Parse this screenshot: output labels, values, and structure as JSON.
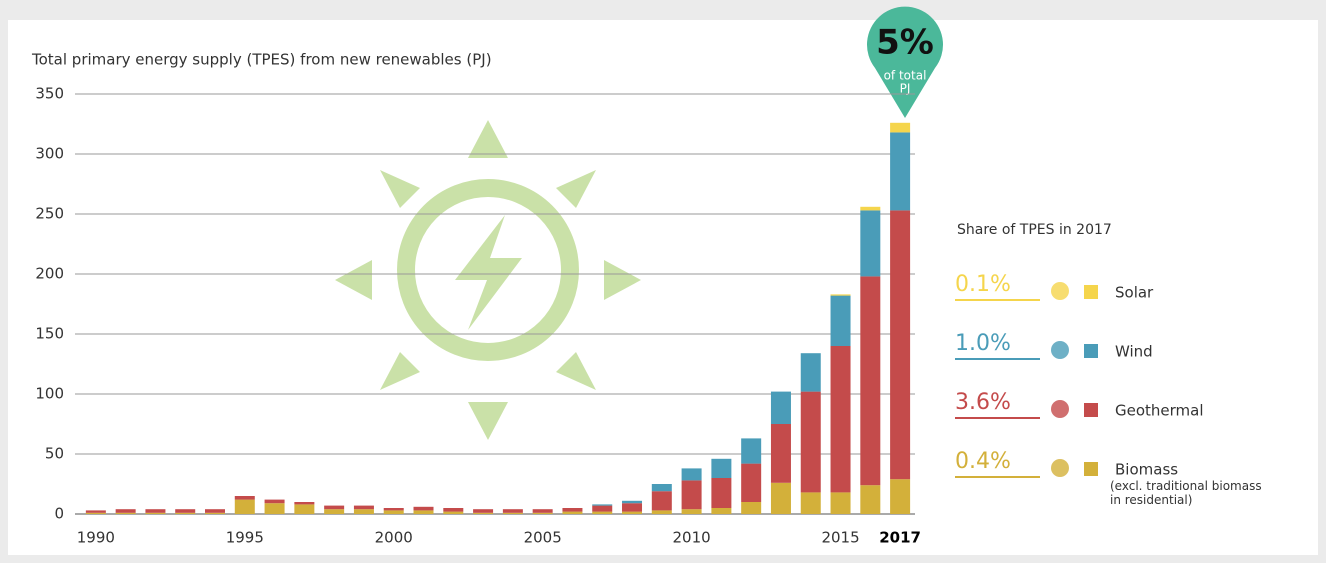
{
  "chart_data": {
    "type": "bar",
    "stacked": true,
    "title": "Total primary energy supply (TPES) from new renewables (PJ)",
    "x": [
      1990,
      1991,
      1992,
      1993,
      1994,
      1995,
      1996,
      1997,
      1998,
      1999,
      2000,
      2001,
      2002,
      2003,
      2004,
      2005,
      2006,
      2007,
      2008,
      2009,
      2010,
      2011,
      2012,
      2013,
      2014,
      2015,
      2016,
      2017
    ],
    "xlim": [
      1989.3,
      2017.5
    ],
    "xticks": [
      1990,
      1995,
      2000,
      2005,
      2010,
      2015,
      2017
    ],
    "ylim": [
      0,
      350
    ],
    "yticks": [
      0,
      50,
      100,
      150,
      200,
      250,
      300,
      350
    ],
    "grid": true,
    "series": [
      {
        "name": "Biomass",
        "note": "(excl. traditional biomass in residential)",
        "share": "0.4%",
        "color": "#d3b03a",
        "values": [
          1,
          1,
          1,
          1,
          1,
          12,
          9,
          8,
          4,
          4,
          3,
          3,
          2,
          1,
          1,
          1,
          2,
          2,
          2,
          3,
          4,
          5,
          10,
          26,
          18,
          18,
          24,
          29
        ]
      },
      {
        "name": "Geothermal",
        "share": "3.6%",
        "color": "#c44b4b",
        "values": [
          2,
          3,
          3,
          3,
          3,
          3,
          3,
          2,
          3,
          3,
          2,
          3,
          3,
          3,
          3,
          3,
          3,
          5,
          7,
          16,
          24,
          25,
          32,
          49,
          84,
          122,
          174,
          224
        ]
      },
      {
        "name": "Wind",
        "share": "1.0%",
        "color": "#4a9cb8",
        "values": [
          0,
          0,
          0,
          0,
          0,
          0,
          0,
          0,
          0,
          0,
          0,
          0,
          0,
          0,
          0,
          0,
          0,
          1,
          2,
          6,
          10,
          16,
          21,
          27,
          32,
          42,
          55,
          65
        ]
      },
      {
        "name": "Solar",
        "share": "0.1%",
        "color": "#f5d54c",
        "values": [
          0,
          0,
          0,
          0,
          0,
          0,
          0,
          0,
          0,
          0,
          0,
          0,
          0,
          0,
          0,
          0,
          0,
          0,
          0,
          0,
          0,
          0,
          0,
          0,
          0,
          1,
          3,
          8
        ]
      }
    ],
    "legend_title": "Share of TPES in 2017",
    "annotation": {
      "text": "5%",
      "lines": [
        "of total",
        "PJ"
      ]
    }
  }
}
